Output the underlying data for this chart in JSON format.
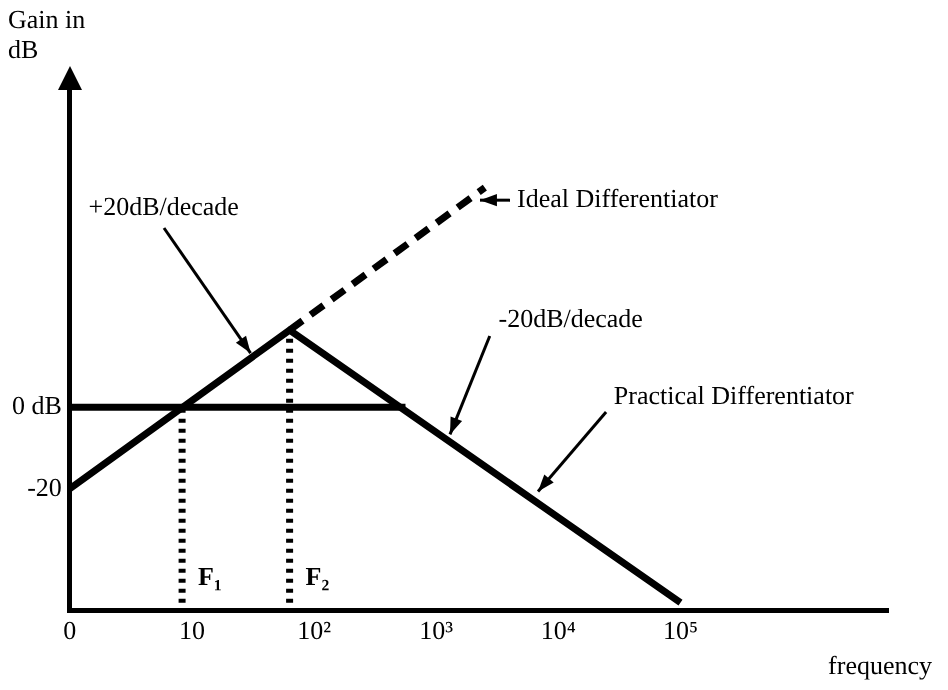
{
  "chart_data": {
    "type": "line",
    "xlabel": "frequency",
    "ylabel": "Gain in dB",
    "log": "x",
    "xlim": [
      0,
      5000000
    ],
    "ylim": [
      -50,
      78
    ],
    "xticks": [
      0,
      10,
      {
        "value": 100,
        "label": "10²"
      },
      {
        "value": 1000,
        "label": "10³"
      },
      {
        "value": 10000,
        "label": "10⁴"
      },
      {
        "value": 100000,
        "label": "10⁵"
      }
    ],
    "yticks": [
      {
        "value": 0,
        "label": "0 dB"
      },
      -20
    ],
    "series": [
      {
        "color": "#000000",
        "x": [
          1,
          63,
          100000
        ],
        "values": [
          -20,
          19,
          -48
        ],
        "line_style": "solid"
      },
      {
        "color": "#000000",
        "x": [
          63,
          2500
        ],
        "values": [
          19,
          54
        ],
        "line_style": "dashed"
      },
      {
        "color": "#000000",
        "x": [
          1,
          560
        ],
        "values": [
          0,
          0
        ],
        "line_style": "solid"
      },
      {
        "color": "#000000",
        "x": [
          8.3,
          8.3
        ],
        "values": [
          -48,
          0
        ],
        "line_style": "dotted"
      },
      {
        "color": "#000000",
        "x": [
          63,
          63
        ],
        "values": [
          -48,
          19
        ],
        "line_style": "dotted"
      }
    ],
    "annotations": [
      {
        "text": "+20dB/decade",
        "x": 32,
        "y": 12
      },
      {
        "text": "Ideal Differentiator",
        "x": 2000,
        "y": 51
      },
      {
        "text": "-20dB/decade",
        "x": 1260,
        "y": -8
      },
      {
        "text": "Practical Differentiator",
        "x": 6300,
        "y": -22
      },
      {
        "text": "F₁",
        "x": 8.3,
        "y": -42
      },
      {
        "text": "F₂",
        "x": 63,
        "y": -42
      }
    ],
    "marker": "none",
    "grid": false,
    "legend": false
  }
}
